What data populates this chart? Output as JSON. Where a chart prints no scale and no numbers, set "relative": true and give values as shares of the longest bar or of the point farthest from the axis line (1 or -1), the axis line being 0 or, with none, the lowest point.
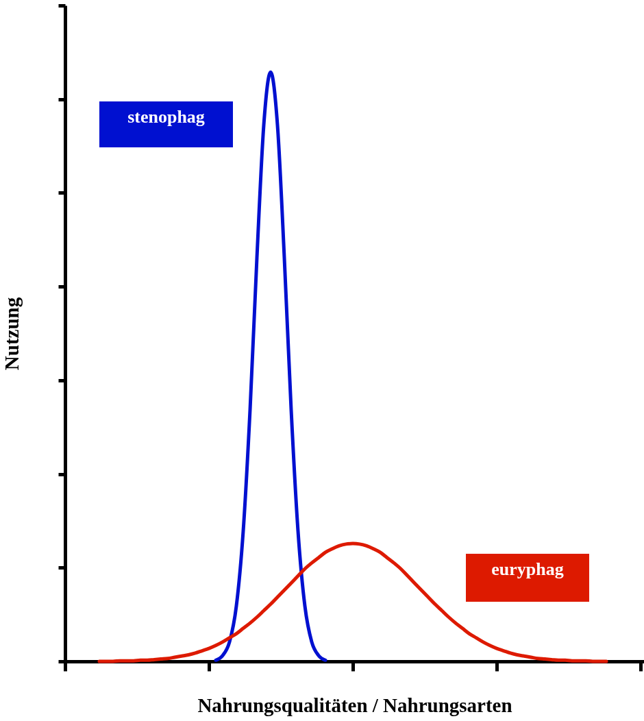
{
  "chart_data": {
    "type": "line",
    "relative": true,
    "xlabel": "Nahrungsqualitäten / Nahrungsarten",
    "ylabel": "Nutzung",
    "categories": [
      null,
      null,
      null,
      null,
      null,
      null,
      null,
      null,
      null,
      null,
      null,
      null,
      null,
      null,
      null,
      null,
      null,
      null,
      null,
      null,
      null,
      null,
      null,
      null,
      null,
      null,
      null,
      null,
      null,
      null,
      null,
      null,
      null,
      null,
      null,
      null,
      null,
      null,
      null,
      null,
      null,
      null,
      null,
      null,
      null,
      null,
      null,
      null,
      null,
      null,
      null,
      null,
      null,
      null,
      null,
      null,
      null,
      null,
      null,
      null,
      null,
      null,
      null,
      null,
      null,
      null,
      null,
      null,
      null,
      null,
      null,
      null,
      null,
      null,
      null,
      null,
      null,
      null,
      null,
      null,
      null,
      null,
      null,
      null,
      null
    ],
    "series": [
      {
        "name": "stenophag",
        "color": "#0010d0",
        "values": [
          null,
          null,
          null,
          null,
          null,
          null,
          null,
          null,
          null,
          null,
          null,
          null,
          null,
          null,
          null,
          null,
          null,
          null,
          null,
          null,
          null,
          null,
          0.002,
          0.01,
          0.033,
          0.094,
          0.221,
          0.427,
          0.685,
          0.91,
          1,
          0.91,
          0.685,
          0.427,
          0.221,
          0.094,
          0.033,
          0.01,
          0.002,
          null,
          null,
          null,
          null,
          null,
          null,
          null,
          null,
          null,
          null,
          null,
          null,
          null,
          null,
          null,
          null,
          null,
          null,
          null,
          null,
          null,
          null,
          null,
          null,
          null,
          null,
          null,
          null,
          null,
          null,
          null,
          null,
          null,
          null,
          null,
          null,
          null,
          null,
          null,
          null,
          null,
          null,
          null,
          null,
          null,
          null
        ]
      },
      {
        "name": "euryphag",
        "color": "#dd1a00",
        "values": [
          null,
          null,
          null,
          null,
          null,
          0,
          0,
          0,
          0.001,
          0.001,
          0.001,
          0.002,
          0.002,
          0.003,
          0.004,
          0.005,
          0.007,
          0.009,
          0.011,
          0.014,
          0.018,
          0.022,
          0.027,
          0.033,
          0.04,
          0.047,
          0.056,
          0.065,
          0.075,
          0.086,
          0.097,
          0.109,
          0.121,
          0.133,
          0.145,
          0.157,
          0.167,
          0.176,
          0.185,
          0.191,
          0.196,
          0.199,
          0.2,
          0.199,
          0.196,
          0.191,
          0.185,
          0.176,
          0.167,
          0.157,
          0.145,
          0.133,
          0.121,
          0.109,
          0.097,
          0.086,
          0.075,
          0.065,
          0.056,
          0.047,
          0.04,
          0.033,
          0.027,
          0.022,
          0.018,
          0.014,
          0.011,
          0.009,
          0.007,
          0.005,
          0.004,
          0.003,
          0.002,
          0.002,
          0.001,
          0.001,
          0.001,
          0,
          0,
          0,
          null,
          null,
          null,
          null,
          null
        ]
      }
    ]
  }
}
